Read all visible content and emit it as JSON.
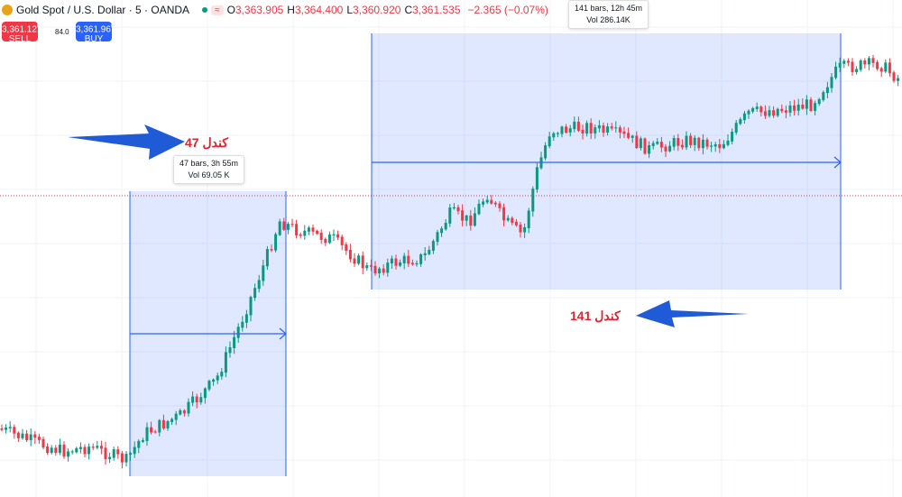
{
  "header": {
    "symbol": "Gold Spot / U.S. Dollar · 5 · OANDA",
    "ohlc": [
      {
        "label": "O",
        "value": "3,363.905"
      },
      {
        "label": "H",
        "value": "3,364.400"
      },
      {
        "label": "L",
        "value": "3,360.920"
      },
      {
        "label": "C",
        "value": "3,361.535"
      }
    ],
    "change": "−2.365 (−0.07%)",
    "sell": {
      "price": "3,361.12",
      "sup": "0",
      "label": "SELL"
    },
    "spread": "84.0",
    "buy": {
      "price": "3,361.96",
      "sup": "0",
      "label": "BUY"
    }
  },
  "measures": [
    {
      "bars": "47 bars, 3h 55m",
      "vol": "Vol 69.05 K"
    },
    {
      "bars": "141 bars, 12h 45m",
      "vol": "Vol 286.14K"
    }
  ],
  "annotations": [
    "کندل 47",
    "کندل 141"
  ]
}
